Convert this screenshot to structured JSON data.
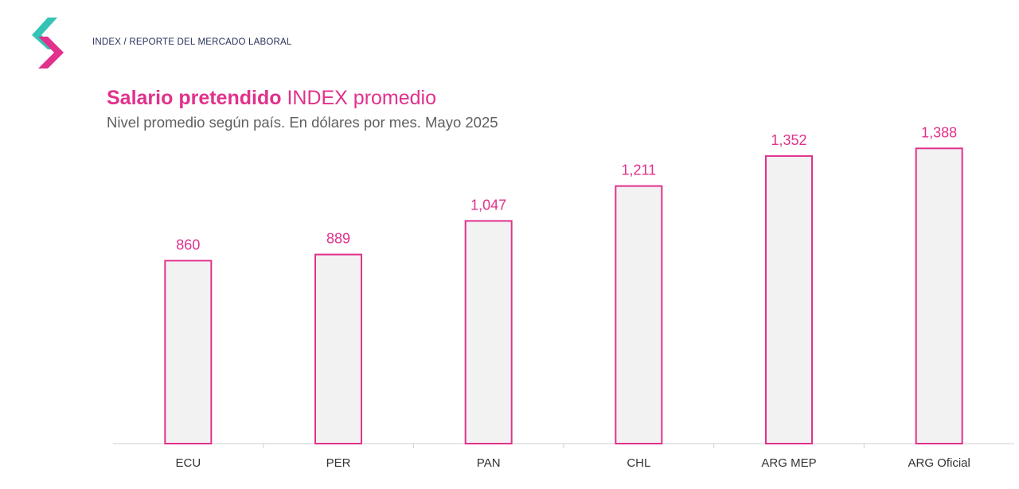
{
  "header": {
    "breadcrumb": "INDEX / REPORTE DEL MERCADO LABORAL",
    "logo_icon": "index-brand-logo",
    "logo_colors": {
      "top": "#34c3b5",
      "bottom": "#e1318c"
    }
  },
  "chart_data": {
    "type": "bar",
    "title_bold": "Salario pretendido",
    "title_rest": "INDEX promedio",
    "subtitle": "Nivel promedio según país. En dólares por mes. Mayo 2025",
    "categories": [
      "ECU",
      "PER",
      "PAN",
      "CHL",
      "ARG MEP",
      "ARG Oficial"
    ],
    "values": [
      860,
      889,
      1047,
      1211,
      1352,
      1388
    ],
    "value_labels": [
      "860",
      "889",
      "1,047",
      "1,211",
      "1,352",
      "1,388"
    ],
    "ylim": [
      0,
      1700
    ],
    "grid": false,
    "legend": "none",
    "colors": {
      "bar_fill": "#f2f2f2",
      "bar_stroke": "#e1318c",
      "label": "#e1318c"
    }
  }
}
